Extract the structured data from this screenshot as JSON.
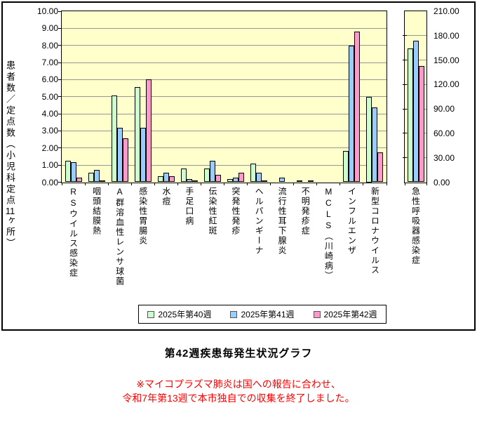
{
  "title": "第42週疾患毎発生状況グラフ",
  "footnote": {
    "line1": "※マイコプラズマ肺炎は国への報告に合わせ、",
    "line2": "令和7年第13週で本市独自での収集を終了しました。"
  },
  "colors": {
    "series": [
      "#ccffcc",
      "#99ccff",
      "#ff99cc"
    ],
    "plot_bg": "#ffffcc",
    "grid": "#969696",
    "axis": "#000000",
    "footnote": "#ff0000"
  },
  "legend": {
    "items": [
      {
        "label": "2025年第40週",
        "color": "#ccffcc"
      },
      {
        "label": "2025年第41週",
        "color": "#99ccff"
      },
      {
        "label": "2025年第42週",
        "color": "#ff99cc"
      }
    ]
  },
  "left_axis": {
    "label": "患者数／定点数（小児科定点11ヶ所）",
    "min": 0,
    "max": 10,
    "step": 1,
    "tick_labels": [
      "10.00",
      "9.00",
      "8.00",
      "7.00",
      "6.00",
      "5.00",
      "4.00",
      "3.00",
      "2.00",
      "1.00",
      "0.00"
    ]
  },
  "right_axis": {
    "min": 0,
    "max": 210,
    "step": 30,
    "tick_labels": [
      "210.00",
      "180.00",
      "150.00",
      "120.00",
      "90.00",
      "60.00",
      "30.00",
      "0.00"
    ]
  },
  "chart_data": {
    "type": "bar",
    "main": {
      "ylim": [
        0,
        10
      ],
      "grid": true,
      "categories": [
        "RSウイルス感染症",
        "咽頭結膜熱",
        "A群溶血性レンサ球菌",
        "感染性胃腸炎",
        "水痘",
        "手足口病",
        "伝染性紅斑",
        "突発性発疹",
        "ヘルパンギーナ",
        "流行性耳下腺炎",
        "不明発疹症",
        "MCLS（川崎病）",
        "インフルエンザ",
        "新型コロナウイルス"
      ],
      "series": [
        {
          "name": "2025年第40週",
          "values": [
            1.27,
            0.55,
            5.09,
            5.55,
            0.36,
            0.82,
            0.82,
            0.18,
            1.09,
            0.0,
            0.09,
            0.0,
            1.82,
            5.0
          ]
        },
        {
          "name": "2025年第41週",
          "values": [
            1.18,
            0.73,
            3.18,
            3.18,
            0.55,
            0.18,
            1.27,
            0.27,
            0.55,
            0.27,
            0.0,
            0.0,
            8.0,
            4.36
          ]
        },
        {
          "name": "2025年第42週",
          "values": [
            0.27,
            0.09,
            2.55,
            6.0,
            0.36,
            0.09,
            0.45,
            0.55,
            0.09,
            0.0,
            0.09,
            0.0,
            8.82,
            1.73
          ]
        }
      ]
    },
    "secondary": {
      "category": "急性呼吸器感染症",
      "axis": "right",
      "ylim": [
        0,
        210
      ],
      "series": [
        {
          "name": "2025年第40週",
          "value": 164
        },
        {
          "name": "2025年第41週",
          "value": 174
        },
        {
          "name": "2025年第42週",
          "value": 143
        }
      ]
    }
  }
}
